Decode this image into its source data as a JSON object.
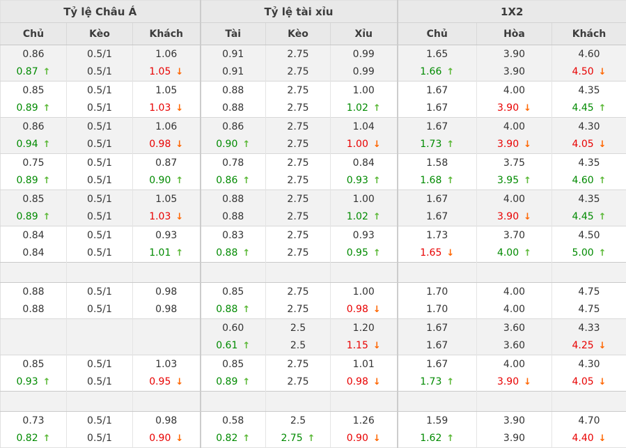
{
  "table": {
    "sections": [
      {
        "title": "Tỷ lệ Châu Á",
        "columns": [
          "Chủ",
          "Kèo",
          "Khách"
        ]
      },
      {
        "title": "Tỷ lệ tài xỉu",
        "columns": [
          "Tài",
          "Kèo",
          "Xỉu"
        ]
      },
      {
        "title": "1X2",
        "columns": [
          "Chủ",
          "Hòa",
          "Khách"
        ]
      }
    ],
    "groups": [
      {
        "type": "data",
        "shade": "gray",
        "line1": [
          {
            "v": "0.86"
          },
          {
            "v": "0.5/1"
          },
          {
            "v": "1.06"
          },
          {
            "v": "0.91"
          },
          {
            "v": "2.75"
          },
          {
            "v": "0.99"
          },
          {
            "v": "1.65"
          },
          {
            "v": "3.90"
          },
          {
            "v": "4.60"
          }
        ],
        "line2": [
          {
            "v": "0.87",
            "d": "up"
          },
          {
            "v": "0.5/1"
          },
          {
            "v": "1.05",
            "d": "down"
          },
          {
            "v": "0.91"
          },
          {
            "v": "2.75"
          },
          {
            "v": "0.99"
          },
          {
            "v": "1.66",
            "d": "up"
          },
          {
            "v": "3.90"
          },
          {
            "v": "4.50",
            "d": "down"
          }
        ]
      },
      {
        "type": "data",
        "shade": "white",
        "line1": [
          {
            "v": "0.85"
          },
          {
            "v": "0.5/1"
          },
          {
            "v": "1.05"
          },
          {
            "v": "0.88"
          },
          {
            "v": "2.75"
          },
          {
            "v": "1.00"
          },
          {
            "v": "1.67"
          },
          {
            "v": "4.00"
          },
          {
            "v": "4.35"
          }
        ],
        "line2": [
          {
            "v": "0.89",
            "d": "up"
          },
          {
            "v": "0.5/1"
          },
          {
            "v": "1.03",
            "d": "down"
          },
          {
            "v": "0.88"
          },
          {
            "v": "2.75"
          },
          {
            "v": "1.02",
            "d": "up"
          },
          {
            "v": "1.67"
          },
          {
            "v": "3.90",
            "d": "down"
          },
          {
            "v": "4.45",
            "d": "up"
          }
        ]
      },
      {
        "type": "data",
        "shade": "gray",
        "line1": [
          {
            "v": "0.86"
          },
          {
            "v": "0.5/1"
          },
          {
            "v": "1.06"
          },
          {
            "v": "0.86"
          },
          {
            "v": "2.75"
          },
          {
            "v": "1.04"
          },
          {
            "v": "1.67"
          },
          {
            "v": "4.00"
          },
          {
            "v": "4.30"
          }
        ],
        "line2": [
          {
            "v": "0.94",
            "d": "up"
          },
          {
            "v": "0.5/1"
          },
          {
            "v": "0.98",
            "d": "down"
          },
          {
            "v": "0.90",
            "d": "up"
          },
          {
            "v": "2.75"
          },
          {
            "v": "1.00",
            "d": "down"
          },
          {
            "v": "1.73",
            "d": "up"
          },
          {
            "v": "3.90",
            "d": "down"
          },
          {
            "v": "4.05",
            "d": "down"
          }
        ]
      },
      {
        "type": "data",
        "shade": "white",
        "line1": [
          {
            "v": "0.75"
          },
          {
            "v": "0.5/1"
          },
          {
            "v": "0.87"
          },
          {
            "v": "0.78"
          },
          {
            "v": "2.75"
          },
          {
            "v": "0.84"
          },
          {
            "v": "1.58"
          },
          {
            "v": "3.75"
          },
          {
            "v": "4.35"
          }
        ],
        "line2": [
          {
            "v": "0.89",
            "d": "up"
          },
          {
            "v": "0.5/1"
          },
          {
            "v": "0.90",
            "d": "up"
          },
          {
            "v": "0.86",
            "d": "up"
          },
          {
            "v": "2.75"
          },
          {
            "v": "0.93",
            "d": "up"
          },
          {
            "v": "1.68",
            "d": "up"
          },
          {
            "v": "3.95",
            "d": "up"
          },
          {
            "v": "4.60",
            "d": "up"
          }
        ]
      },
      {
        "type": "data",
        "shade": "gray",
        "line1": [
          {
            "v": "0.85"
          },
          {
            "v": "0.5/1"
          },
          {
            "v": "1.05"
          },
          {
            "v": "0.88"
          },
          {
            "v": "2.75"
          },
          {
            "v": "1.00"
          },
          {
            "v": "1.67"
          },
          {
            "v": "4.00"
          },
          {
            "v": "4.35"
          }
        ],
        "line2": [
          {
            "v": "0.89",
            "d": "up"
          },
          {
            "v": "0.5/1"
          },
          {
            "v": "1.03",
            "d": "down"
          },
          {
            "v": "0.88"
          },
          {
            "v": "2.75"
          },
          {
            "v": "1.02",
            "d": "up"
          },
          {
            "v": "1.67"
          },
          {
            "v": "3.90",
            "d": "down"
          },
          {
            "v": "4.45",
            "d": "up"
          }
        ]
      },
      {
        "type": "data",
        "shade": "white",
        "line1": [
          {
            "v": "0.84"
          },
          {
            "v": "0.5/1"
          },
          {
            "v": "0.93"
          },
          {
            "v": "0.83"
          },
          {
            "v": "2.75"
          },
          {
            "v": "0.93"
          },
          {
            "v": "1.73"
          },
          {
            "v": "3.70"
          },
          {
            "v": "4.50"
          }
        ],
        "line2": [
          {
            "v": "0.84"
          },
          {
            "v": "0.5/1"
          },
          {
            "v": "1.01",
            "d": "up"
          },
          {
            "v": "0.88",
            "d": "up"
          },
          {
            "v": "2.75"
          },
          {
            "v": "0.95",
            "d": "up"
          },
          {
            "v": "1.65",
            "d": "down"
          },
          {
            "v": "4.00",
            "d": "up"
          },
          {
            "v": "5.00",
            "d": "up"
          }
        ]
      },
      {
        "type": "spacer"
      },
      {
        "type": "data",
        "shade": "white",
        "line1": [
          {
            "v": "0.88"
          },
          {
            "v": "0.5/1"
          },
          {
            "v": "0.98"
          },
          {
            "v": "0.85"
          },
          {
            "v": "2.75"
          },
          {
            "v": "1.00"
          },
          {
            "v": "1.70"
          },
          {
            "v": "4.00"
          },
          {
            "v": "4.75"
          }
        ],
        "line2": [
          {
            "v": "0.88"
          },
          {
            "v": "0.5/1"
          },
          {
            "v": "0.98"
          },
          {
            "v": "0.88",
            "d": "up"
          },
          {
            "v": "2.75"
          },
          {
            "v": "0.98",
            "d": "down"
          },
          {
            "v": "1.70"
          },
          {
            "v": "4.00"
          },
          {
            "v": "4.75"
          }
        ]
      },
      {
        "type": "data",
        "shade": "gray",
        "line1": [
          {
            "v": ""
          },
          {
            "v": ""
          },
          {
            "v": ""
          },
          {
            "v": "0.60"
          },
          {
            "v": "2.5"
          },
          {
            "v": "1.20"
          },
          {
            "v": "1.67"
          },
          {
            "v": "3.60"
          },
          {
            "v": "4.33"
          }
        ],
        "line2": [
          {
            "v": ""
          },
          {
            "v": ""
          },
          {
            "v": ""
          },
          {
            "v": "0.61",
            "d": "up"
          },
          {
            "v": "2.5"
          },
          {
            "v": "1.15",
            "d": "down"
          },
          {
            "v": "1.67"
          },
          {
            "v": "3.60"
          },
          {
            "v": "4.25",
            "d": "down"
          }
        ]
      },
      {
        "type": "data",
        "shade": "white",
        "line1": [
          {
            "v": "0.85"
          },
          {
            "v": "0.5/1"
          },
          {
            "v": "1.03"
          },
          {
            "v": "0.85"
          },
          {
            "v": "2.75"
          },
          {
            "v": "1.01"
          },
          {
            "v": "1.67"
          },
          {
            "v": "4.00"
          },
          {
            "v": "4.30"
          }
        ],
        "line2": [
          {
            "v": "0.93",
            "d": "up"
          },
          {
            "v": "0.5/1"
          },
          {
            "v": "0.95",
            "d": "down"
          },
          {
            "v": "0.89",
            "d": "up"
          },
          {
            "v": "2.75"
          },
          {
            "v": "0.98",
            "d": "down"
          },
          {
            "v": "1.73",
            "d": "up"
          },
          {
            "v": "3.90",
            "d": "down"
          },
          {
            "v": "4.05",
            "d": "down"
          }
        ]
      },
      {
        "type": "spacer"
      },
      {
        "type": "data",
        "shade": "white",
        "line1": [
          {
            "v": "0.73"
          },
          {
            "v": "0.5/1"
          },
          {
            "v": "0.98"
          },
          {
            "v": "0.58"
          },
          {
            "v": "2.5"
          },
          {
            "v": "1.26"
          },
          {
            "v": "1.59"
          },
          {
            "v": "3.90"
          },
          {
            "v": "4.70"
          }
        ],
        "line2": [
          {
            "v": "0.82",
            "d": "up"
          },
          {
            "v": "0.5/1"
          },
          {
            "v": "0.90",
            "d": "down"
          },
          {
            "v": "0.82",
            "d": "up"
          },
          {
            "v": "2.75",
            "d": "up"
          },
          {
            "v": "0.90",
            "d": "down"
          },
          {
            "v": "1.62",
            "d": "up"
          },
          {
            "v": "3.90"
          },
          {
            "v": "4.40",
            "d": "down"
          }
        ]
      }
    ]
  },
  "icons": {
    "up": "↑",
    "down": "↓"
  },
  "colors": {
    "up": "#008a00",
    "down": "#e80000",
    "up_arrow": "#5bb837",
    "down_arrow": "#ff6600",
    "header_bg": "#e9e9e9",
    "row_bg": "#ffffff",
    "row_alt_bg": "#f2f2f2"
  }
}
